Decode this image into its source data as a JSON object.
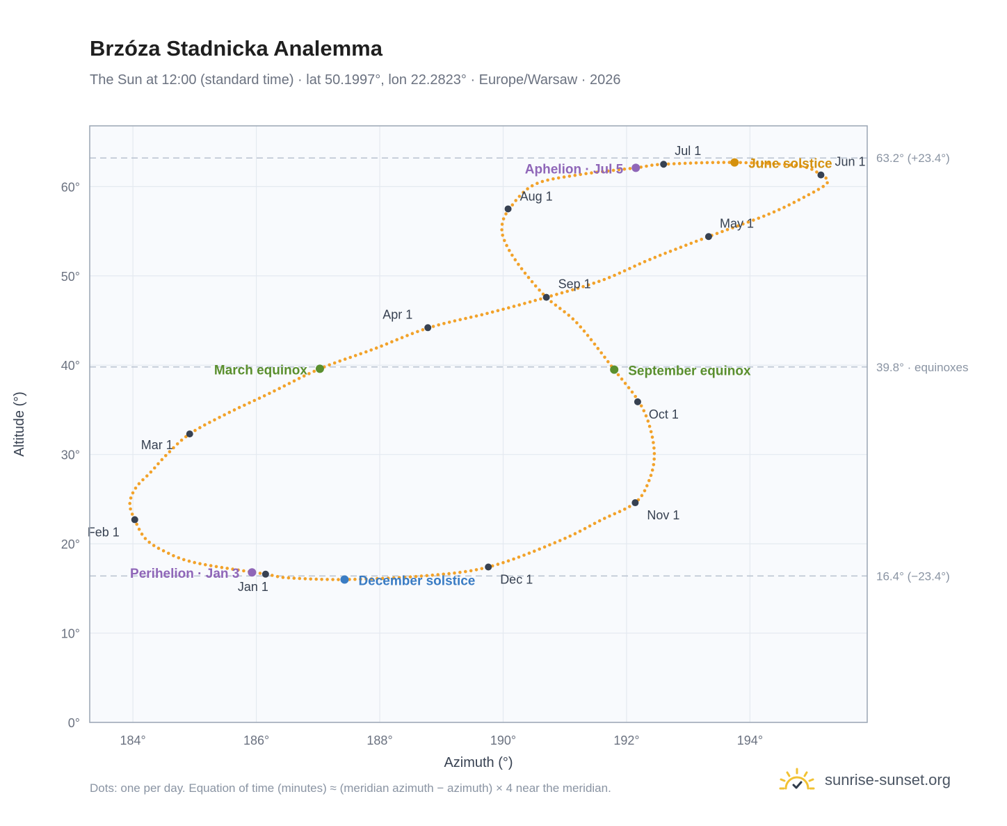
{
  "title": "Brzóza Stadnicka Analemma",
  "subtitle": "The Sun at 12:00 (standard time) · lat 50.1997°, lon 22.2823° · Europe/Warsaw · 2026",
  "footnote": "Dots: one per day. Equation of time (minutes) ≈ (meridian azimuth − azimuth) × 4 near the meridian.",
  "brand": {
    "name": "sunrise-sunset.org",
    "icon": "sun-logo-icon"
  },
  "colors": {
    "path": "#f2a22a",
    "month_dot": "#374151",
    "equinox": "#5a8f2e",
    "june_solstice": "#d4910e",
    "december_solstice": "#3a7cc4",
    "apsis": "#8f66b8",
    "plot_bg": "#f8fafd",
    "grid": "#e4e9f0",
    "refline": "#b8c2d0"
  },
  "chart_data": {
    "type": "scatter",
    "title": "Brzóza Stadnicka Analemma",
    "xlabel": "Azimuth (°)",
    "ylabel": "Altitude (°)",
    "xlim": [
      183.3,
      195.9
    ],
    "ylim": [
      0,
      66.8
    ],
    "xticks": [
      184,
      186,
      188,
      190,
      192,
      194
    ],
    "xtick_labels": [
      "184°",
      "186°",
      "188°",
      "190°",
      "192°",
      "194°"
    ],
    "yticks": [
      0,
      10,
      20,
      30,
      40,
      50,
      60
    ],
    "ytick_labels": [
      "0°",
      "10°",
      "20°",
      "30°",
      "40°",
      "50°",
      "60°"
    ],
    "grid": true,
    "reference_lines": [
      {
        "y": 63.2,
        "label": "63.2° (+23.4°)"
      },
      {
        "y": 39.8,
        "label": "39.8° · equinoxes"
      },
      {
        "y": 16.4,
        "label": "16.4° (−23.4°)"
      }
    ],
    "series": [
      {
        "note_style": "one dot per day",
        "points": [
          [
            186.15,
            16.6
          ],
          [
            185.0,
            17.9
          ],
          [
            184.5,
            19.2
          ],
          [
            184.2,
            20.6
          ],
          [
            184.03,
            22.7
          ],
          [
            183.95,
            24.5
          ],
          [
            184.05,
            26.3
          ],
          [
            184.3,
            28.1
          ],
          [
            184.55,
            30.0
          ],
          [
            184.92,
            32.3
          ],
          [
            185.5,
            34.5
          ],
          [
            186.2,
            36.8
          ],
          [
            187.03,
            39.6
          ],
          [
            187.9,
            41.8
          ],
          [
            188.8,
            44.2
          ],
          [
            189.8,
            45.9
          ],
          [
            190.7,
            47.6
          ],
          [
            191.6,
            49.5
          ],
          [
            192.4,
            51.9
          ],
          [
            193.33,
            54.4
          ],
          [
            194.3,
            56.9
          ],
          [
            194.9,
            58.9
          ],
          [
            195.25,
            60.4
          ],
          [
            195.15,
            61.3
          ],
          [
            194.8,
            62.3
          ],
          [
            193.75,
            62.7
          ],
          [
            192.6,
            62.5
          ],
          [
            192.15,
            62.1
          ],
          [
            191.2,
            61.3
          ],
          [
            190.5,
            60.2
          ],
          [
            190.1,
            57.5
          ],
          [
            189.98,
            55.5
          ],
          [
            190.05,
            53.5
          ],
          [
            190.3,
            50.8
          ],
          [
            190.7,
            47.6
          ],
          [
            191.2,
            44.7
          ],
          [
            191.8,
            39.5
          ],
          [
            192.2,
            35.9
          ],
          [
            192.38,
            33.0
          ],
          [
            192.45,
            29.8
          ],
          [
            192.36,
            27.0
          ],
          [
            192.14,
            24.6
          ],
          [
            191.6,
            22.7
          ],
          [
            190.9,
            20.3
          ],
          [
            189.76,
            17.4
          ],
          [
            188.7,
            16.4
          ],
          [
            187.43,
            16.0
          ],
          [
            186.5,
            16.2
          ],
          [
            186.15,
            16.6
          ]
        ]
      }
    ],
    "month_markers": [
      {
        "label": "Jan 1",
        "azimuth": 186.15,
        "altitude": 16.6
      },
      {
        "label": "Feb 1",
        "azimuth": 184.03,
        "altitude": 22.7
      },
      {
        "label": "Mar 1",
        "azimuth": 184.92,
        "altitude": 32.3
      },
      {
        "label": "Apr 1",
        "azimuth": 188.78,
        "altitude": 44.2
      },
      {
        "label": "May 1",
        "azimuth": 193.33,
        "altitude": 54.4
      },
      {
        "label": "Jun 1",
        "azimuth": 195.15,
        "altitude": 61.3
      },
      {
        "label": "Jul 1",
        "azimuth": 192.6,
        "altitude": 62.5
      },
      {
        "label": "Aug 1",
        "azimuth": 190.08,
        "altitude": 57.5
      },
      {
        "label": "Sep 1",
        "azimuth": 190.7,
        "altitude": 47.6
      },
      {
        "label": "Oct 1",
        "azimuth": 192.18,
        "altitude": 35.9
      },
      {
        "label": "Nov 1",
        "azimuth": 192.14,
        "altitude": 24.6
      },
      {
        "label": "Dec 1",
        "azimuth": 189.76,
        "altitude": 17.4
      }
    ],
    "events": [
      {
        "label": "March equinox",
        "azimuth": 187.03,
        "altitude": 39.6,
        "color_key": "equinox",
        "side": "left"
      },
      {
        "label": "September equinox",
        "azimuth": 191.8,
        "altitude": 39.5,
        "color_key": "equinox",
        "side": "right"
      },
      {
        "label": "June solstice",
        "azimuth": 193.75,
        "altitude": 62.7,
        "color_key": "june_solstice",
        "side": "right"
      },
      {
        "label": "December solstice",
        "azimuth": 187.43,
        "altitude": 16.0,
        "color_key": "december_solstice",
        "side": "right"
      },
      {
        "label": "Aphelion · Jul 5",
        "azimuth": 192.15,
        "altitude": 62.1,
        "color_key": "apsis",
        "side": "left"
      },
      {
        "label": "Perihelion · Jan 3",
        "azimuth": 185.93,
        "altitude": 16.8,
        "color_key": "apsis",
        "side": "left"
      }
    ]
  }
}
